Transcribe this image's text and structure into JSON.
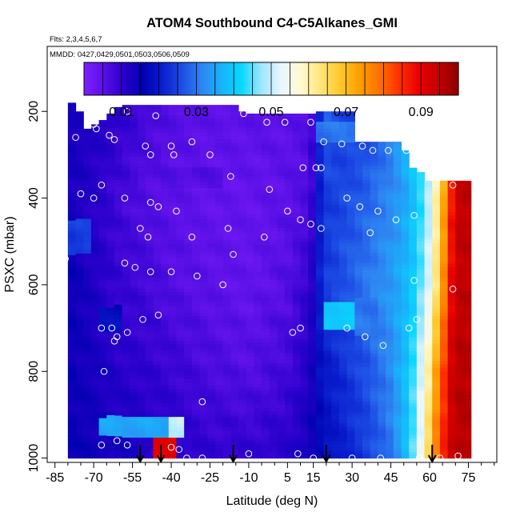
{
  "chart_data": {
    "type": "heatmap",
    "title": "ATOM4 Southbound C4-C5Alkanes_GMI",
    "flights_label": "Flts: 2,3,4,5,6,7",
    "dates_label": "MMDD: 0427,0429,0501,0503,0506,0509",
    "xlabel": "Latitude (deg N)",
    "ylabel": "PSXC (mbar)",
    "xlim": [
      -88,
      86
    ],
    "ylim": [
      1010,
      50
    ],
    "y_reversed": true,
    "x_ticks": [
      -85,
      -70,
      -55,
      -40,
      -25,
      -10,
      5,
      15,
      30,
      45,
      60,
      75
    ],
    "x_tick_labels": [
      "-85",
      "-70",
      "-55",
      "-40",
      "-25",
      "-10",
      "5",
      "15",
      "30",
      "45",
      "60",
      "75"
    ],
    "y_ticks": [
      200,
      400,
      600,
      800,
      1000
    ],
    "y_tick_labels": [
      "200",
      "400",
      "600",
      "800",
      "1000"
    ],
    "colorbar": {
      "min": 0.0,
      "max": 0.1,
      "tick_values": [
        0.01,
        0.03,
        0.05,
        0.07,
        0.09
      ],
      "tick_labels": [
        "0.01",
        "0.03",
        "0.05",
        "0.07",
        "0.09"
      ],
      "colors": [
        "#7f1fff",
        "#5a10e6",
        "#2a00cc",
        "#0000b0",
        "#0a1fcf",
        "#1e4fe6",
        "#2f86f2",
        "#18b4fb",
        "#08d8ff",
        "#9fe6ff",
        "#e8f6ff",
        "#fffbd0",
        "#ffe57a",
        "#ffc82a",
        "#ff9e00",
        "#ff7000",
        "#ff3000",
        "#ea0000",
        "#c20000",
        "#8f0000"
      ]
    },
    "field": {
      "x_edges": [
        -83,
        -80,
        -77,
        -74,
        -71,
        -68,
        -65,
        -62,
        -59,
        -56,
        -53,
        -50,
        -47,
        -44,
        -41,
        -38,
        -35,
        -32,
        -29,
        -26,
        -23,
        -20,
        -17,
        -14,
        -11,
        -8,
        -5,
        -2,
        1,
        4,
        7,
        10,
        13,
        16,
        19,
        22,
        25,
        28,
        31,
        34,
        37,
        40,
        43,
        46,
        49,
        52,
        55,
        58,
        61,
        64,
        67,
        70,
        73
      ],
      "lat_anchors": [
        -84,
        -70,
        -60,
        -50,
        -40,
        -25,
        -10,
        5,
        14,
        17,
        20,
        25,
        35,
        45,
        52,
        56,
        60,
        63,
        66,
        68,
        70,
        72
      ],
      "p_anchors": [
        200,
        400,
        600,
        800,
        1000
      ],
      "value_grid": [
        [
          0.014,
          0.012,
          0.01,
          0.008,
          0.006,
          0.005,
          0.005,
          0.005,
          0.006,
          0.02,
          0.028,
          0.025,
          0.024,
          0.03,
          0.04,
          0.04,
          0.05,
          0.06,
          0.07,
          0.085,
          0.09,
          0.095
        ],
        [
          0.014,
          0.011,
          0.008,
          0.006,
          0.005,
          0.004,
          0.004,
          0.005,
          0.007,
          0.02,
          0.024,
          0.025,
          0.028,
          0.032,
          0.036,
          0.042,
          0.05,
          0.062,
          0.075,
          0.085,
          0.092,
          0.095
        ],
        [
          0.016,
          0.012,
          0.009,
          0.008,
          0.006,
          0.005,
          0.004,
          0.006,
          0.01,
          0.02,
          0.024,
          0.026,
          0.03,
          0.034,
          0.038,
          0.044,
          0.053,
          0.065,
          0.078,
          0.088,
          0.093,
          0.095
        ],
        [
          0.015,
          0.013,
          0.011,
          0.01,
          0.009,
          0.007,
          0.006,
          0.008,
          0.012,
          0.018,
          0.02,
          0.022,
          0.026,
          0.032,
          0.04,
          0.05,
          0.062,
          0.075,
          0.085,
          0.092,
          0.095,
          0.096
        ],
        [
          0.015,
          0.014,
          0.013,
          0.012,
          0.011,
          0.01,
          0.01,
          0.011,
          0.014,
          0.016,
          0.018,
          0.02,
          0.024,
          0.03,
          0.04,
          0.052,
          0.068,
          0.08,
          0.088,
          0.093,
          0.095,
          0.096
        ]
      ],
      "coverage": [
        [
          -80,
          180,
          390,
          1000
        ],
        [
          -77,
          200,
          300,
          1000
        ],
        [
          -74,
          240,
          350,
          1000
        ],
        [
          -71,
          230,
          420,
          1000
        ],
        [
          -68,
          220,
          490,
          1000
        ],
        [
          -65,
          205,
          530,
          1000
        ],
        [
          -62,
          190,
          570,
          1000
        ],
        [
          -59,
          185,
          600,
          1000
        ],
        [
          -56,
          185,
          650,
          1000
        ],
        [
          -53,
          185,
          700,
          1000
        ],
        [
          -50,
          185,
          750,
          1000
        ],
        [
          -47,
          185,
          780,
          1000
        ],
        [
          -44,
          185,
          820,
          1000
        ],
        [
          -41,
          185,
          850,
          1000
        ],
        [
          -38,
          185,
          860,
          1000
        ],
        [
          -35,
          185,
          880,
          1000
        ],
        [
          -32,
          185,
          890,
          1000
        ],
        [
          -29,
          185,
          900,
          1000
        ],
        [
          -26,
          185,
          910,
          1000
        ],
        [
          -23,
          185,
          920,
          1000
        ],
        [
          -20,
          185,
          930,
          1000
        ],
        [
          -17,
          185,
          940,
          1000
        ],
        [
          -14,
          200,
          950,
          1000
        ],
        [
          -11,
          205,
          960,
          1000
        ],
        [
          -8,
          205,
          970,
          1000
        ],
        [
          -5,
          205,
          975,
          1000
        ],
        [
          -2,
          205,
          980,
          1000
        ],
        [
          1,
          205,
          985,
          1000
        ],
        [
          4,
          205,
          990,
          1000
        ],
        [
          7,
          205,
          993,
          1000
        ],
        [
          10,
          205,
          995,
          1000
        ],
        [
          13,
          205,
          997,
          1000
        ],
        [
          16,
          200,
          998,
          1000
        ],
        [
          19,
          200,
          999,
          1000
        ],
        [
          22,
          200,
          1000,
          1000
        ],
        [
          25,
          200,
          1000,
          1000
        ],
        [
          28,
          200,
          1000,
          1000
        ],
        [
          31,
          270,
          1000,
          1000
        ],
        [
          34,
          270,
          1000,
          1000
        ],
        [
          37,
          270,
          1000,
          1000
        ],
        [
          40,
          270,
          1000,
          1000
        ],
        [
          43,
          270,
          1000,
          1000
        ],
        [
          46,
          270,
          1000,
          1000
        ],
        [
          49,
          290,
          1000,
          1000
        ],
        [
          52,
          330,
          1000,
          1000
        ],
        [
          55,
          340,
          1000,
          1000
        ],
        [
          58,
          360,
          1000,
          1000
        ],
        [
          61,
          360,
          1000,
          1000
        ],
        [
          64,
          360,
          1000,
          1000
        ],
        [
          67,
          360,
          1000,
          1000
        ],
        [
          70,
          360,
          1000,
          1000
        ],
        [
          73,
          360,
          1000,
          1000
        ]
      ],
      "overlay_patches": [
        {
          "lat_min": -69,
          "lat_max": -38,
          "p_min": 905,
          "p_max": 950,
          "value": 0.035
        },
        {
          "lat_min": -40,
          "lat_max": -36,
          "p_min": 905,
          "p_max": 950,
          "value": 0.05
        },
        {
          "lat_min": -48,
          "lat_max": -38,
          "p_min": 950,
          "p_max": 1000,
          "value": 0.09
        },
        {
          "lat_min": -84,
          "lat_max": -71,
          "p_min": 450,
          "p_max": 530,
          "value": 0.024
        },
        {
          "lat_min": -68,
          "lat_max": -58,
          "p_min": 650,
          "p_max": 710,
          "value": 0.018
        },
        {
          "lat_min": -45,
          "lat_max": -20,
          "p_min": 330,
          "p_max": 380,
          "value": 0.006
        },
        {
          "lat_min": 15,
          "lat_max": 30,
          "p_min": 225,
          "p_max": 275,
          "value": 0.03
        },
        {
          "lat_min": 20,
          "lat_max": 35,
          "p_min": 640,
          "p_max": 700,
          "value": 0.04
        },
        {
          "lat_min": 30,
          "lat_max": 40,
          "p_min": 630,
          "p_max": 720,
          "value": 0.03
        }
      ]
    },
    "points": [
      [
        -57,
        200
      ],
      [
        -46,
        210
      ],
      [
        -72,
        220
      ],
      [
        -70,
        230
      ],
      [
        -69,
        240
      ],
      [
        -84,
        240
      ],
      [
        -64,
        255
      ],
      [
        -77,
        260
      ],
      [
        -62,
        265
      ],
      [
        -50,
        280
      ],
      [
        -40,
        280
      ],
      [
        -32,
        270
      ],
      [
        -48,
        300
      ],
      [
        -39,
        300
      ],
      [
        -25,
        300
      ],
      [
        -12,
        205
      ],
      [
        -3,
        225
      ],
      [
        4,
        225
      ],
      [
        14,
        225
      ],
      [
        19,
        270
      ],
      [
        26,
        275
      ],
      [
        34,
        280
      ],
      [
        38,
        290
      ],
      [
        44,
        290
      ],
      [
        51,
        290
      ],
      [
        11,
        330
      ],
      [
        16,
        330
      ],
      [
        18,
        330
      ],
      [
        -67,
        370
      ],
      [
        -75,
        390
      ],
      [
        -70,
        400
      ],
      [
        -58,
        400
      ],
      [
        -48,
        410
      ],
      [
        -45,
        420
      ],
      [
        -38,
        430
      ],
      [
        -17,
        350
      ],
      [
        -2,
        380
      ],
      [
        5,
        430
      ],
      [
        10,
        450
      ],
      [
        14,
        460
      ],
      [
        18,
        470
      ],
      [
        28,
        400
      ],
      [
        33,
        420
      ],
      [
        40,
        430
      ],
      [
        47,
        450
      ],
      [
        54,
        440
      ],
      [
        -85,
        450
      ],
      [
        -52,
        470
      ],
      [
        -49,
        490
      ],
      [
        -32,
        490
      ],
      [
        -18,
        470
      ],
      [
        -4,
        490
      ],
      [
        37,
        480
      ],
      [
        69,
        370
      ],
      [
        -81,
        540
      ],
      [
        -58,
        550
      ],
      [
        -54,
        560
      ],
      [
        -48,
        570
      ],
      [
        -40,
        570
      ],
      [
        -30,
        580
      ],
      [
        -20,
        600
      ],
      [
        -16,
        530
      ],
      [
        54,
        590
      ],
      [
        69,
        610
      ],
      [
        -63,
        700
      ],
      [
        -67,
        700
      ],
      [
        -61,
        720
      ],
      [
        -62,
        730
      ],
      [
        -57,
        710
      ],
      [
        -51,
        680
      ],
      [
        -45,
        670
      ],
      [
        7,
        710
      ],
      [
        10,
        700
      ],
      [
        28,
        700
      ],
      [
        35,
        720
      ],
      [
        42,
        740
      ],
      [
        52,
        700
      ],
      [
        55,
        680
      ],
      [
        -66,
        800
      ],
      [
        -28,
        870
      ],
      [
        -67,
        970
      ],
      [
        -61,
        960
      ],
      [
        -57,
        970
      ],
      [
        -40,
        975
      ],
      [
        -37,
        980
      ],
      [
        -28,
        1000
      ],
      [
        -34,
        1000
      ],
      [
        -10,
        990
      ],
      [
        9,
        990
      ],
      [
        15,
        1000
      ],
      [
        30,
        1000
      ],
      [
        41,
        1000
      ],
      [
        56,
        1000
      ],
      [
        64,
        1000
      ],
      [
        71,
        995
      ]
    ],
    "arrows": [
      -52,
      -44,
      -16,
      20,
      61
    ]
  }
}
